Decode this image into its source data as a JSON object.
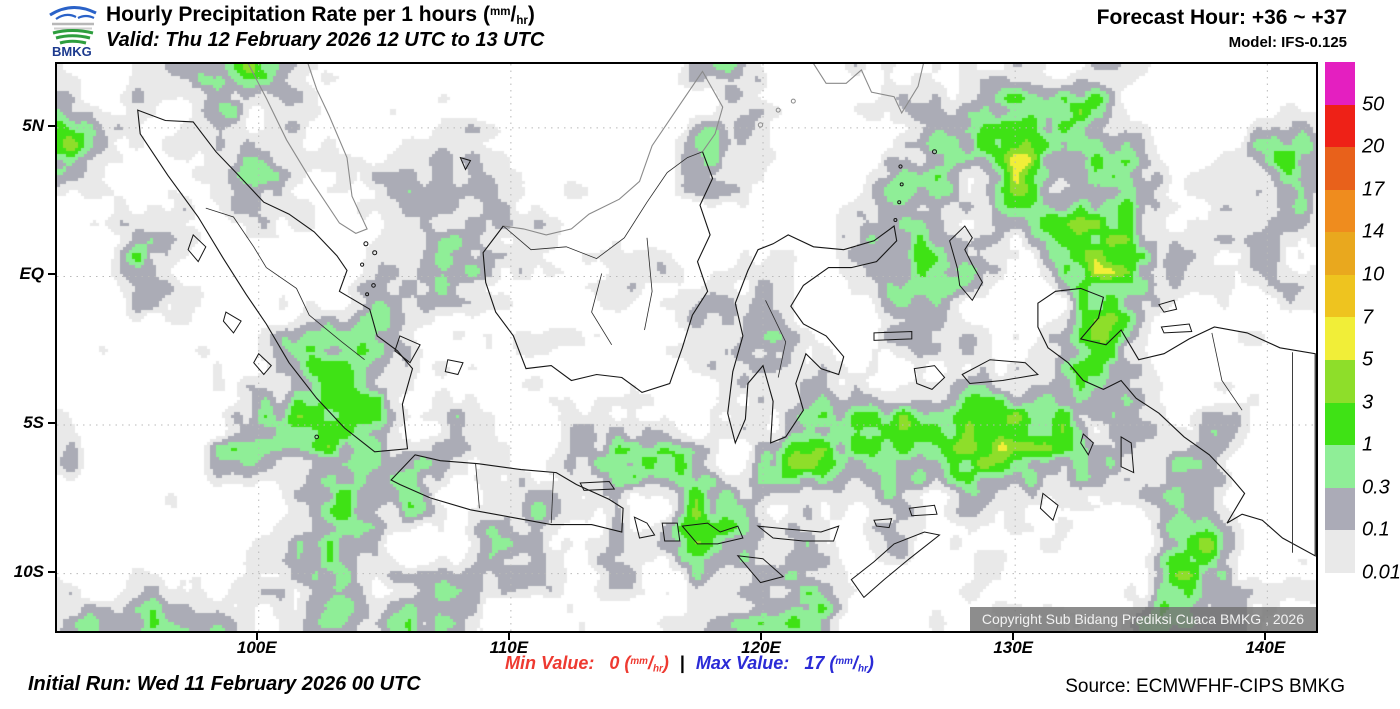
{
  "header": {
    "logo_text": "BMKG",
    "title": "Hourly Precipitation Rate per 1 hours",
    "valid": "Valid: Thu 12 February 2026 12 UTC to 13 UTC",
    "forecast_hour": "Forecast Hour: +36 ~ +37",
    "model": "Model: IFS-0.125"
  },
  "unit": {
    "left": "(",
    "num": "mm",
    "slash": "/",
    "den": "hr",
    "right": ")"
  },
  "map": {
    "extent": {
      "lon_min": 92.0,
      "lon_max": 141.93,
      "lat_min": -11.93,
      "lat_max": 7.15
    },
    "x_ticks": [
      {
        "label": "100E",
        "lon": 100
      },
      {
        "label": "110E",
        "lon": 110
      },
      {
        "label": "120E",
        "lon": 120
      },
      {
        "label": "130E",
        "lon": 130
      },
      {
        "label": "140E",
        "lon": 140
      }
    ],
    "y_ticks": [
      {
        "label": "5N",
        "lat": 5
      },
      {
        "label": "EQ",
        "lat": 0
      },
      {
        "label": "5S",
        "lat": -5
      },
      {
        "label": "10S",
        "lat": -10
      }
    ],
    "copyright": "Copyright Sub Bidang Prediksi Cuaca BMKG , 2026"
  },
  "legend": {
    "entries": [
      {
        "label": "50",
        "color": "#e41fc0"
      },
      {
        "label": "20",
        "color": "#ee2117"
      },
      {
        "label": "17",
        "color": "#e8611b"
      },
      {
        "label": "14",
        "color": "#ef8c1e"
      },
      {
        "label": "10",
        "color": "#e9a81e"
      },
      {
        "label": "7",
        "color": "#eec41f"
      },
      {
        "label": "5",
        "color": "#f1ee38"
      },
      {
        "label": "3",
        "color": "#8ede2a"
      },
      {
        "label": "1",
        "color": "#3fe215"
      },
      {
        "label": "0.3",
        "color": "#8fee97"
      },
      {
        "label": "0.1",
        "color": "#ababb7"
      },
      {
        "label": "0.01",
        "color": "#e9e9e9"
      }
    ]
  },
  "footer": {
    "initial_run": "Initial Run: Wed 11 February 2026 00 UTC",
    "min_label": "Min Value:",
    "min_value": "0",
    "separator": "|",
    "max_label": "Max Value:",
    "max_value": "17",
    "source": "Source: ECMWFHF-CIPS BMKG"
  },
  "colors": {
    "min_text": "#ee3a31",
    "max_text": "#2b2bd6",
    "field_palette": [
      "#ffffff",
      "#e9e9e9",
      "#abacb6",
      "#8fee97",
      "#3fe215",
      "#8ede2a",
      "#f1ee38",
      "#eec41f",
      "#ef8c1e",
      "#e8611b"
    ]
  }
}
